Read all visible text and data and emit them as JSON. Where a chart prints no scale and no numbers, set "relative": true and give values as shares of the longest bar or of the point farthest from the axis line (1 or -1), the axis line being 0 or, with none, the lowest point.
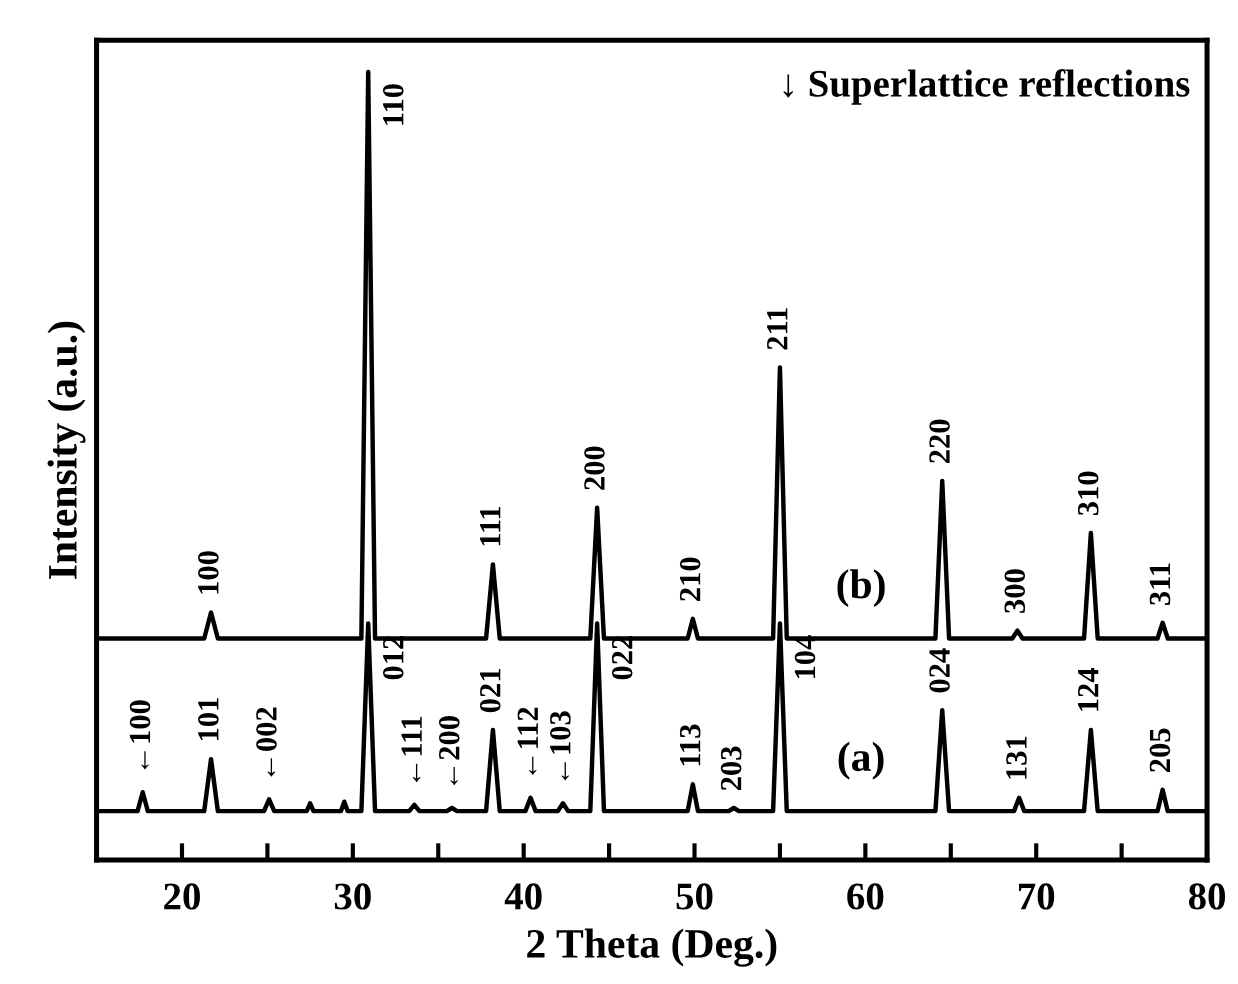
{
  "chart_data": {
    "type": "line",
    "relative": true,
    "xlabel": "2 Theta (Deg.)",
    "ylabel": "Intensity (a.u.)",
    "xlim": [
      15,
      80
    ],
    "xticks": [
      20,
      {
        "value": 25,
        "label": null
      },
      30,
      {
        "value": 35,
        "label": null
      },
      40,
      {
        "value": 45,
        "label": null
      },
      50,
      {
        "value": 55,
        "label": null
      },
      60,
      {
        "value": 65,
        "label": null
      },
      70,
      {
        "value": 75,
        "label": null
      },
      80
    ],
    "grid": false,
    "legend": false,
    "marker": "none",
    "line_style": "solid",
    "series": [
      {
        "name": "(b)",
        "color": "#000000",
        "x": [
          15,
          18,
          21.3,
          21.7,
          22.1,
          25,
          28,
          30.5,
          30.9,
          31.3,
          34,
          37.8,
          38.2,
          38.6,
          41,
          43.9,
          44.3,
          44.7,
          47,
          49.6,
          49.9,
          50.2,
          53,
          54.6,
          55.0,
          55.4,
          58,
          61,
          64.1,
          64.5,
          64.9,
          67,
          68.6,
          68.9,
          69.2,
          71,
          72.8,
          73.2,
          73.6,
          75,
          77.1,
          77.4,
          77.7,
          80
        ],
        "values": [
          0.281,
          0.281,
          0.281,
          0.314,
          0.281,
          0.281,
          0.281,
          0.281,
          1.0,
          0.281,
          0.281,
          0.281,
          0.375,
          0.281,
          0.281,
          0.281,
          0.447,
          0.281,
          0.281,
          0.281,
          0.306,
          0.281,
          0.281,
          0.281,
          0.625,
          0.281,
          0.281,
          0.281,
          0.281,
          0.481,
          0.281,
          0.281,
          0.281,
          0.291,
          0.281,
          0.281,
          0.281,
          0.415,
          0.281,
          0.281,
          0.281,
          0.301,
          0.281,
          0.281
        ]
      },
      {
        "name": "(a)",
        "color": "#000000",
        "x": [
          15,
          17.4,
          17.7,
          18.0,
          21.3,
          21.7,
          22.1,
          24.8,
          25.1,
          25.4,
          27.3,
          27.5,
          27.7,
          29.3,
          29.5,
          29.7,
          30.5,
          30.9,
          31.3,
          33.3,
          33.6,
          33.9,
          35.5,
          35.8,
          36.1,
          37.8,
          38.2,
          38.6,
          40.1,
          40.4,
          40.7,
          42.0,
          42.3,
          42.6,
          43.9,
          44.3,
          44.7,
          47,
          49.6,
          49.9,
          50.2,
          52.0,
          52.3,
          52.6,
          54.6,
          55.0,
          55.4,
          58,
          61,
          64.1,
          64.5,
          64.9,
          67,
          68.7,
          69.0,
          69.3,
          71,
          72.8,
          73.2,
          73.6,
          75,
          77.1,
          77.4,
          77.7,
          80
        ],
        "values": [
          0.062,
          0.062,
          0.086,
          0.062,
          0.062,
          0.128,
          0.062,
          0.062,
          0.077,
          0.062,
          0.062,
          0.072,
          0.062,
          0.062,
          0.074,
          0.062,
          0.062,
          0.3,
          0.062,
          0.062,
          0.07,
          0.062,
          0.062,
          0.066,
          0.062,
          0.062,
          0.165,
          0.062,
          0.062,
          0.079,
          0.062,
          0.062,
          0.072,
          0.062,
          0.062,
          0.3,
          0.062,
          0.062,
          0.062,
          0.096,
          0.062,
          0.062,
          0.066,
          0.062,
          0.062,
          0.3,
          0.062,
          0.062,
          0.062,
          0.062,
          0.19,
          0.062,
          0.062,
          0.062,
          0.079,
          0.062,
          0.062,
          0.062,
          0.165,
          0.062,
          0.062,
          0.062,
          0.089,
          0.062,
          0.062
        ]
      }
    ],
    "annotations": [
      "↓ Superlattice reflections",
      {
        "text": "100",
        "x": 21.7,
        "y": 0.314
      },
      {
        "text": "110",
        "x": 30.9,
        "y": 1.0
      },
      {
        "text": "111",
        "x": 38.2,
        "y": 0.375
      },
      {
        "text": "200",
        "x": 44.3,
        "y": 0.447
      },
      {
        "text": "210",
        "x": 49.9,
        "y": 0.306
      },
      {
        "text": "211",
        "x": 55.0,
        "y": 0.625
      },
      {
        "text": "220",
        "x": 64.5,
        "y": 0.481
      },
      {
        "text": "300",
        "x": 68.9,
        "y": 0.291
      },
      {
        "text": "310",
        "x": 73.2,
        "y": 0.415
      },
      {
        "text": "311",
        "x": 77.4,
        "y": 0.301
      },
      {
        "text": "←100",
        "x": 17.7,
        "y": 0.086
      },
      {
        "text": "101",
        "x": 21.7,
        "y": 0.128
      },
      {
        "text": "←002",
        "x": 25.1,
        "y": 0.077
      },
      {
        "text": "012",
        "x": 30.9,
        "y": 0.3
      },
      {
        "text": "←111",
        "x": 33.6,
        "y": 0.07
      },
      {
        "text": "←200",
        "x": 35.8,
        "y": 0.066
      },
      {
        "text": "021",
        "x": 38.2,
        "y": 0.165
      },
      {
        "text": "←112",
        "x": 40.4,
        "y": 0.079
      },
      {
        "text": "←103",
        "x": 42.3,
        "y": 0.072
      },
      {
        "text": "022",
        "x": 44.3,
        "y": 0.3
      },
      {
        "text": "113",
        "x": 49.9,
        "y": 0.096
      },
      {
        "text": "203",
        "x": 52.3,
        "y": 0.066
      },
      {
        "text": "104",
        "x": 55.0,
        "y": 0.3
      },
      {
        "text": "024",
        "x": 64.5,
        "y": 0.19
      },
      {
        "text": "131",
        "x": 69.0,
        "y": 0.079
      },
      {
        "text": "124",
        "x": 73.2,
        "y": 0.165
      },
      {
        "text": "205",
        "x": 77.4,
        "y": 0.089
      }
    ]
  }
}
